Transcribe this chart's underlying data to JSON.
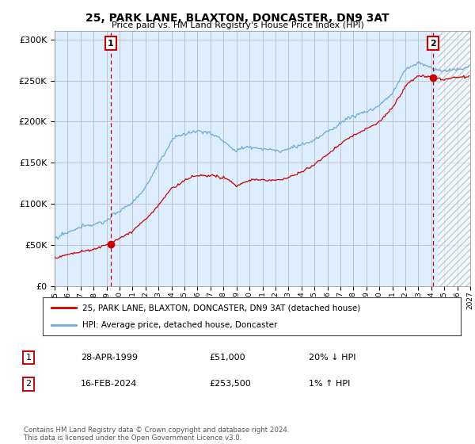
{
  "title": "25, PARK LANE, BLAXTON, DONCASTER, DN9 3AT",
  "subtitle": "Price paid vs. HM Land Registry's House Price Index (HPI)",
  "legend_line1": "25, PARK LANE, BLAXTON, DONCASTER, DN9 3AT (detached house)",
  "legend_line2": "HPI: Average price, detached house, Doncaster",
  "annotation1_label": "1",
  "annotation1_date": "28-APR-1999",
  "annotation1_price": "£51,000",
  "annotation1_hpi": "20% ↓ HPI",
  "annotation2_label": "2",
  "annotation2_date": "16-FEB-2024",
  "annotation2_price": "£253,500",
  "annotation2_hpi": "1% ↑ HPI",
  "footer": "Contains HM Land Registry data © Crown copyright and database right 2024.\nThis data is licensed under the Open Government Licence v3.0.",
  "sale1_year": 1999.32,
  "sale1_price": 51000,
  "sale2_year": 2024.12,
  "sale2_price": 253500,
  "hpi_color": "#6daad6",
  "price_color": "#cc0000",
  "vline_color": "#cc0000",
  "grid_color": "#bbbbcc",
  "bg_color": "#ffffff",
  "chart_bg_color": "#ddeeff",
  "ylim": [
    0,
    310000
  ],
  "xlim_start": 1995,
  "xlim_end": 2027,
  "yticks": [
    0,
    50000,
    100000,
    150000,
    200000,
    250000,
    300000
  ]
}
